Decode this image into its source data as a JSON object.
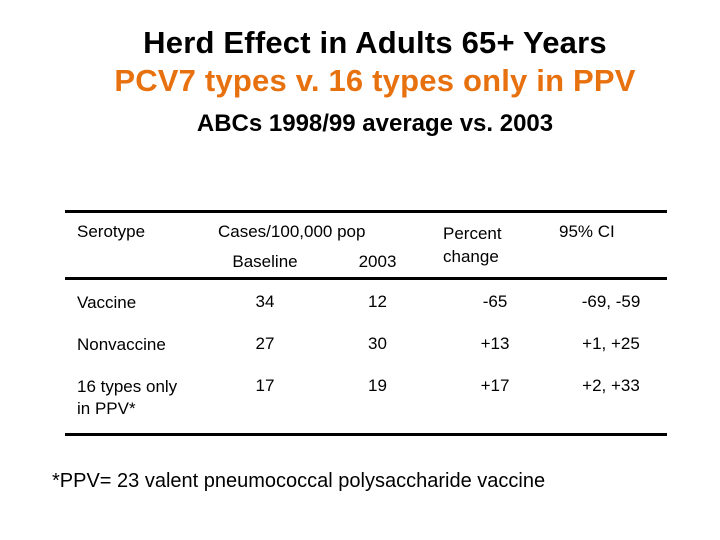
{
  "colors": {
    "background": "#FFFFFF",
    "text": "#000000",
    "title_accent_orange": "#E8710F",
    "table_rule": "#000000"
  },
  "title": {
    "line1": "Herd Effect in Adults 65+ Years",
    "line2": "PCV7 types v. 16 types only in PPV",
    "subtitle": "ABCs 1998/99 average vs. 2003"
  },
  "table": {
    "headers": {
      "serotype": "Serotype",
      "cases_group": "Cases/100,000 pop",
      "baseline": "Baseline",
      "year2003": "2003",
      "percent_change": "Percent change",
      "ci": "95% CI"
    },
    "rows": [
      {
        "serotype": "Vaccine",
        "baseline": "34",
        "year2003": "12",
        "percent_change": "-65",
        "ci": "-69, -59"
      },
      {
        "serotype": "Nonvaccine",
        "baseline": "27",
        "year2003": "30",
        "percent_change": "+13",
        "ci": "+1, +25"
      },
      {
        "serotype": "16 types only in PPV*",
        "baseline": "17",
        "year2003": "19",
        "percent_change": "+17",
        "ci": "+2, +33"
      }
    ]
  },
  "footnote": "*PPV= 23 valent pneumococcal polysaccharide vaccine"
}
